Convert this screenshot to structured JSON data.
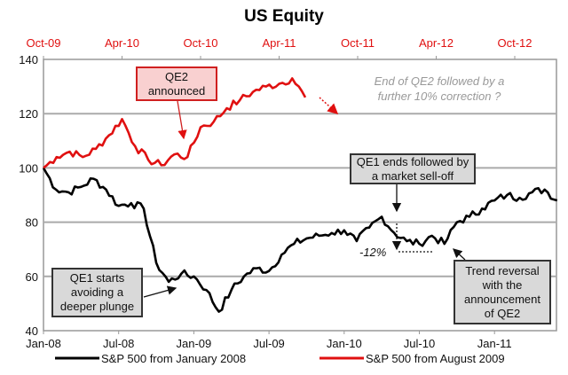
{
  "chart_data": {
    "type": "line",
    "title": "US Equity",
    "ylim": [
      40,
      140
    ],
    "yticks": [
      "140",
      "120",
      "100",
      "80",
      "60",
      "40"
    ],
    "bottom_axis_ticks": [
      "Jan-08",
      "Jul-08",
      "Jan-09",
      "Jul-09",
      "Jan-10",
      "Jul-10",
      "Jan-11"
    ],
    "top_axis_ticks": [
      "Oct-09",
      "Apr-10",
      "Oct-10",
      "Apr-11",
      "Oct-11",
      "Apr-12",
      "Oct-12"
    ],
    "grid": true,
    "legend_position": "bottom",
    "series": [
      {
        "name": "S&P 500  from January 2008",
        "axis": "bottom",
        "start": "Jan-08",
        "color": "#000000",
        "values": [
          100,
          92,
          91,
          93,
          96,
          92,
          86,
          87,
          85,
          65,
          58,
          61,
          60,
          55,
          47,
          55,
          60,
          63,
          62,
          68,
          72,
          74,
          75,
          76,
          77,
          73,
          78,
          82,
          76,
          73,
          72,
          75,
          72,
          80,
          82,
          85,
          88,
          90,
          89,
          91,
          92,
          88
        ]
      },
      {
        "name": "S&P 500  from August 2009",
        "axis": "top",
        "start": "Oct-09",
        "color": "#e01010",
        "values": [
          100,
          104,
          106,
          104,
          107,
          112,
          118,
          108,
          103,
          101,
          105,
          104,
          115,
          117,
          122,
          125,
          128,
          130,
          131,
          133,
          126
        ]
      }
    ],
    "annotations": {
      "qe2": "QE2 announced",
      "qe2_lines": [
        "QE2",
        "announced"
      ],
      "end_qe2": [
        "End of QE2  followed by a",
        "further  10% correction ?"
      ],
      "qe1_ends": [
        "QE1 ends  followed  by",
        "a market  sell-off"
      ],
      "qe1_starts": [
        "QE1 starts",
        "avoiding  a",
        "deeper  plunge"
      ],
      "trend": [
        "Trend reversal",
        "with the",
        "announcement",
        "of QE2"
      ],
      "drop": "-12%"
    }
  }
}
